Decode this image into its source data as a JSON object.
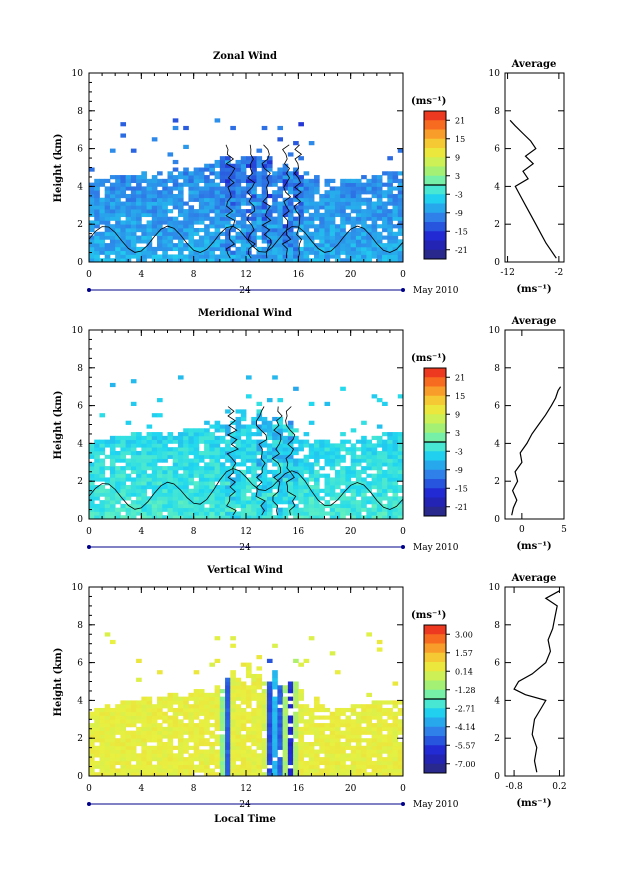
{
  "x_label": "Local Time",
  "date_label": "May 2010",
  "day_label": "24",
  "unit_label": "(ms⁻¹)",
  "chart_data": [
    {
      "type": "heatmap",
      "title": "Zonal Wind",
      "ylabel": "Height (km)",
      "xlabel": "",
      "x_ticks": [
        "0",
        "4",
        "8",
        "12",
        "16",
        "20",
        "0"
      ],
      "y_ticks": [
        "0",
        "2",
        "4",
        "6",
        "8",
        "10"
      ],
      "xlim": [
        0,
        24
      ],
      "ylim": [
        0,
        10
      ],
      "colorbar": {
        "unit": "(ms⁻¹)",
        "labels": [
          "21",
          "15",
          "9",
          "3",
          "-3",
          "-9",
          "-15",
          "-21"
        ],
        "range": [
          -24,
          24
        ]
      },
      "field": {
        "base": -10,
        "amp": 6,
        "top": 4.2,
        "top_peak": 7,
        "convective": [
          [
            10.8,
            0.5
          ],
          [
            12.4,
            0.4
          ],
          [
            13.6,
            0.5
          ],
          [
            15.1,
            0.4
          ],
          [
            16.0,
            0.4
          ]
        ]
      },
      "profile": {
        "title": "Average",
        "x_ticks": [
          "-12",
          "-2"
        ],
        "xlim": [
          -12.5,
          -1
        ],
        "xlabel": "(ms⁻¹)",
        "heights": [
          0.2,
          0.6,
          1.0,
          1.5,
          2.0,
          2.5,
          3.0,
          3.5,
          4.0,
          4.4,
          4.8,
          5.2,
          5.6,
          6.0,
          6.4,
          6.8,
          7.2,
          7.5
        ],
        "values": [
          -2.5,
          -3.5,
          -4.5,
          -5.5,
          -6.5,
          -7.5,
          -8.5,
          -9.5,
          -10.5,
          -8.0,
          -9.0,
          -7.0,
          -8.5,
          -6.5,
          -7.5,
          -9.0,
          -10.5,
          -11.5
        ]
      }
    },
    {
      "type": "heatmap",
      "title": "Meridional Wind",
      "ylabel": "Height (km)",
      "xlabel": "",
      "x_ticks": [
        "0",
        "4",
        "8",
        "12",
        "16",
        "20",
        "0"
      ],
      "y_ticks": [
        "0",
        "2",
        "4",
        "6",
        "8",
        "10"
      ],
      "xlim": [
        0,
        24
      ],
      "ylim": [
        0,
        10
      ],
      "colorbar": {
        "unit": "(ms⁻¹)",
        "labels": [
          "21",
          "15",
          "9",
          "3",
          "-3",
          "-9",
          "-15",
          "-21"
        ],
        "range": [
          -24,
          24
        ]
      },
      "field": {
        "base": -4,
        "amp": 5,
        "top": 4.0,
        "top_peak": 6.8,
        "convective": [
          [
            11.0,
            0.6
          ],
          [
            13.2,
            0.6
          ],
          [
            14.4,
            0.5
          ],
          [
            15.4,
            0.5
          ]
        ]
      },
      "profile": {
        "title": "Average",
        "x_ticks": [
          "0",
          "5"
        ],
        "xlim": [
          -2,
          5
        ],
        "xlabel": "(ms⁻¹)",
        "heights": [
          0.2,
          0.6,
          1.0,
          1.5,
          2.0,
          2.5,
          3.0,
          3.5,
          4.0,
          4.5,
          5.0,
          5.5,
          6.0,
          6.4,
          6.8,
          7.0
        ],
        "values": [
          -1.2,
          -1.0,
          -0.6,
          -1.1,
          -0.5,
          -0.8,
          0.0,
          -0.2,
          0.6,
          1.2,
          2.0,
          2.8,
          3.5,
          4.0,
          4.3,
          4.6
        ]
      }
    },
    {
      "type": "heatmap",
      "title": "Vertical Wind",
      "ylabel": "Height (km)",
      "xlabel": "Local Time",
      "x_ticks": [
        "0",
        "4",
        "8",
        "12",
        "16",
        "20",
        "0"
      ],
      "y_ticks": [
        "0",
        "2",
        "4",
        "6",
        "8",
        "10"
      ],
      "xlim": [
        0,
        24
      ],
      "ylim": [
        0,
        10
      ],
      "colorbar": {
        "unit": "(ms⁻¹)",
        "labels": [
          "3.00",
          "1.57",
          "0.14",
          "-1.28",
          "-2.71",
          "-4.14",
          "-5.57",
          "-7.00"
        ],
        "range": [
          -7.5,
          3.5
        ]
      },
      "field": {
        "base": 0.2,
        "amp": 0.5,
        "top": 3.5,
        "top_peak": 7.0,
        "convective": [
          [
            10.5,
            0.25
          ],
          [
            13.9,
            0.3
          ],
          [
            14.5,
            0.25
          ],
          [
            15.4,
            0.3
          ]
        ]
      },
      "profile": {
        "title": "Average",
        "x_ticks": [
          "-0.8",
          "0.2"
        ],
        "xlim": [
          -1.0,
          0.3
        ],
        "xlabel": "(ms⁻¹)",
        "heights": [
          0.2,
          0.8,
          1.5,
          2.2,
          3.0,
          3.6,
          4.0,
          4.3,
          4.6,
          5.0,
          5.4,
          6.0,
          6.6,
          7.2,
          7.8,
          8.4,
          9.0,
          9.4,
          9.8
        ],
        "values": [
          -0.3,
          -0.35,
          -0.3,
          -0.4,
          -0.35,
          -0.2,
          -0.1,
          -0.55,
          -0.8,
          -0.7,
          -0.4,
          -0.1,
          0.0,
          -0.05,
          0.05,
          0.1,
          0.15,
          -0.1,
          0.2
        ]
      }
    }
  ]
}
